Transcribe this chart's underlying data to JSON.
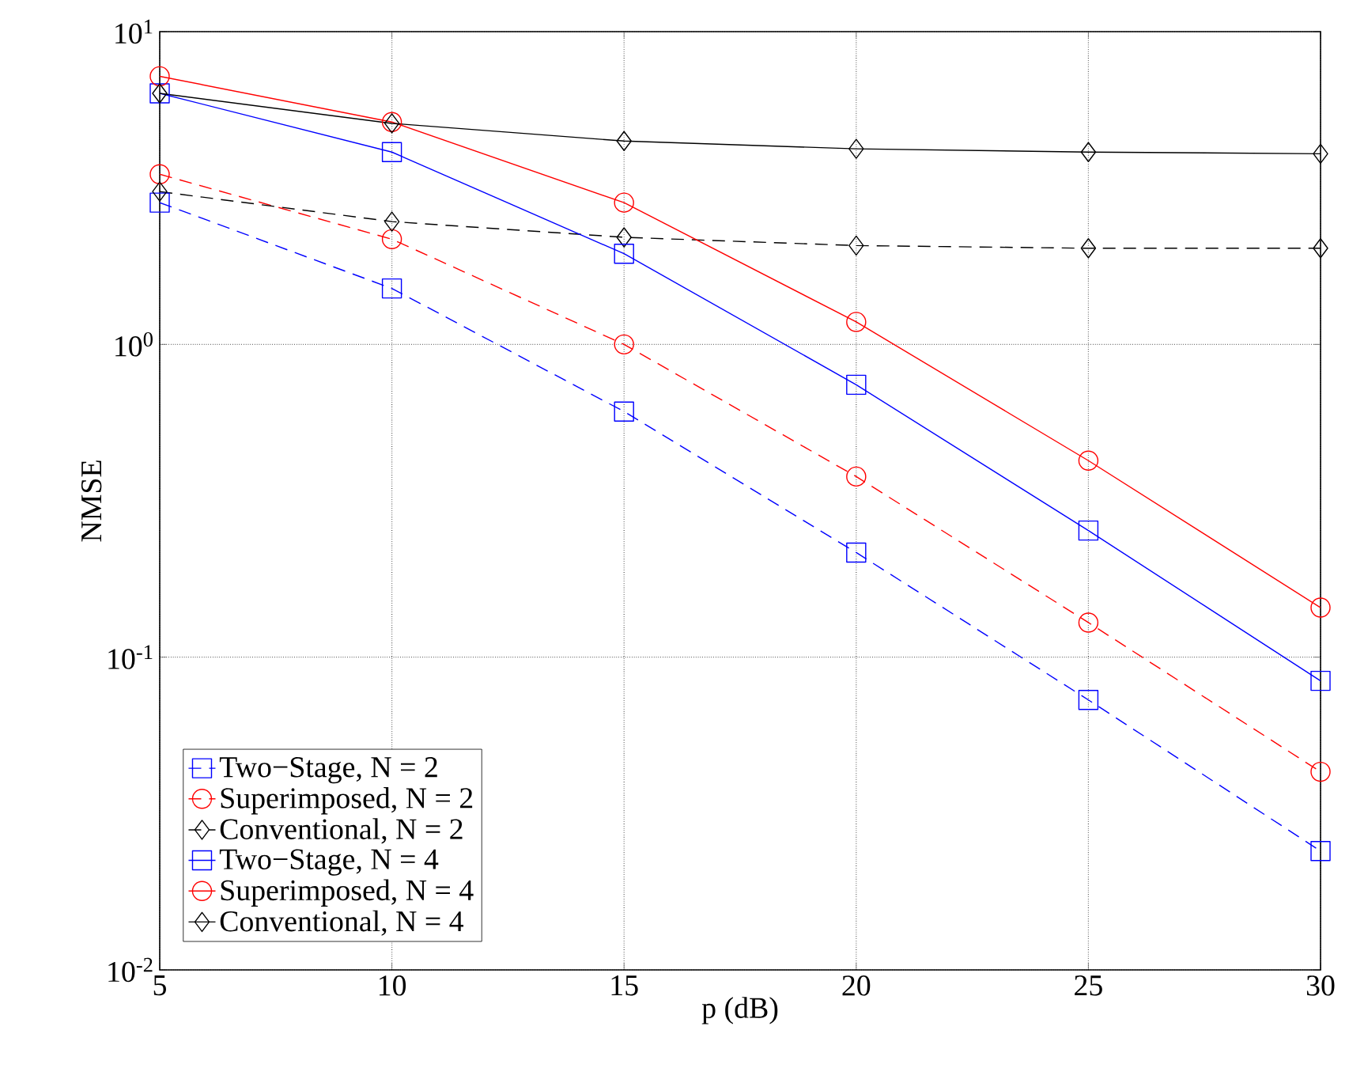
{
  "chart_data": {
    "type": "line",
    "xlabel": "p (dB)",
    "ylabel": "NMSE",
    "x": [
      5,
      10,
      15,
      20,
      25,
      30
    ],
    "series": [
      {
        "name": "Two−Stage, N = 2",
        "color": "#0000ff",
        "line_style": "dashed",
        "marker": "square",
        "values": [
          2.84,
          1.51,
          0.61,
          0.216,
          0.073,
          0.024
        ]
      },
      {
        "name": "Superimposed, N = 2",
        "color": "#ff0000",
        "line_style": "dashed",
        "marker": "circle",
        "values": [
          3.5,
          2.17,
          1.0,
          0.378,
          0.129,
          0.043
        ]
      },
      {
        "name": "Conventional, N = 2",
        "color": "#000000",
        "line_style": "dashed",
        "marker": "diamond",
        "values": [
          3.08,
          2.47,
          2.2,
          2.07,
          2.03,
          2.03
        ]
      },
      {
        "name": "Two−Stage, N = 4",
        "color": "#0000ff",
        "line_style": "solid",
        "marker": "square",
        "values": [
          6.35,
          4.12,
          1.95,
          0.743,
          0.254,
          0.084
        ]
      },
      {
        "name": "Superimposed, N = 4",
        "color": "#ff0000",
        "line_style": "solid",
        "marker": "circle",
        "values": [
          7.2,
          5.14,
          2.84,
          1.18,
          0.425,
          0.144
        ]
      },
      {
        "name": "Conventional, N = 4",
        "color": "#000000",
        "line_style": "solid",
        "marker": "diamond",
        "values": [
          6.35,
          5.09,
          4.47,
          4.22,
          4.12,
          4.07
        ]
      }
    ],
    "xlim": [
      5,
      30
    ],
    "xticks": [
      5,
      10,
      15,
      20,
      25,
      30
    ],
    "ylim": [
      0.01,
      10
    ],
    "yticks": [
      {
        "value": 0.01,
        "label": "10$^{-2}$"
      },
      {
        "value": 0.1,
        "label": "10$^{-1}$"
      },
      {
        "value": 1,
        "label": "10$^{0}$"
      },
      {
        "value": 10,
        "label": "10$^{1}$"
      }
    ],
    "log": "y",
    "grid": true,
    "legend": "bottom left"
  }
}
